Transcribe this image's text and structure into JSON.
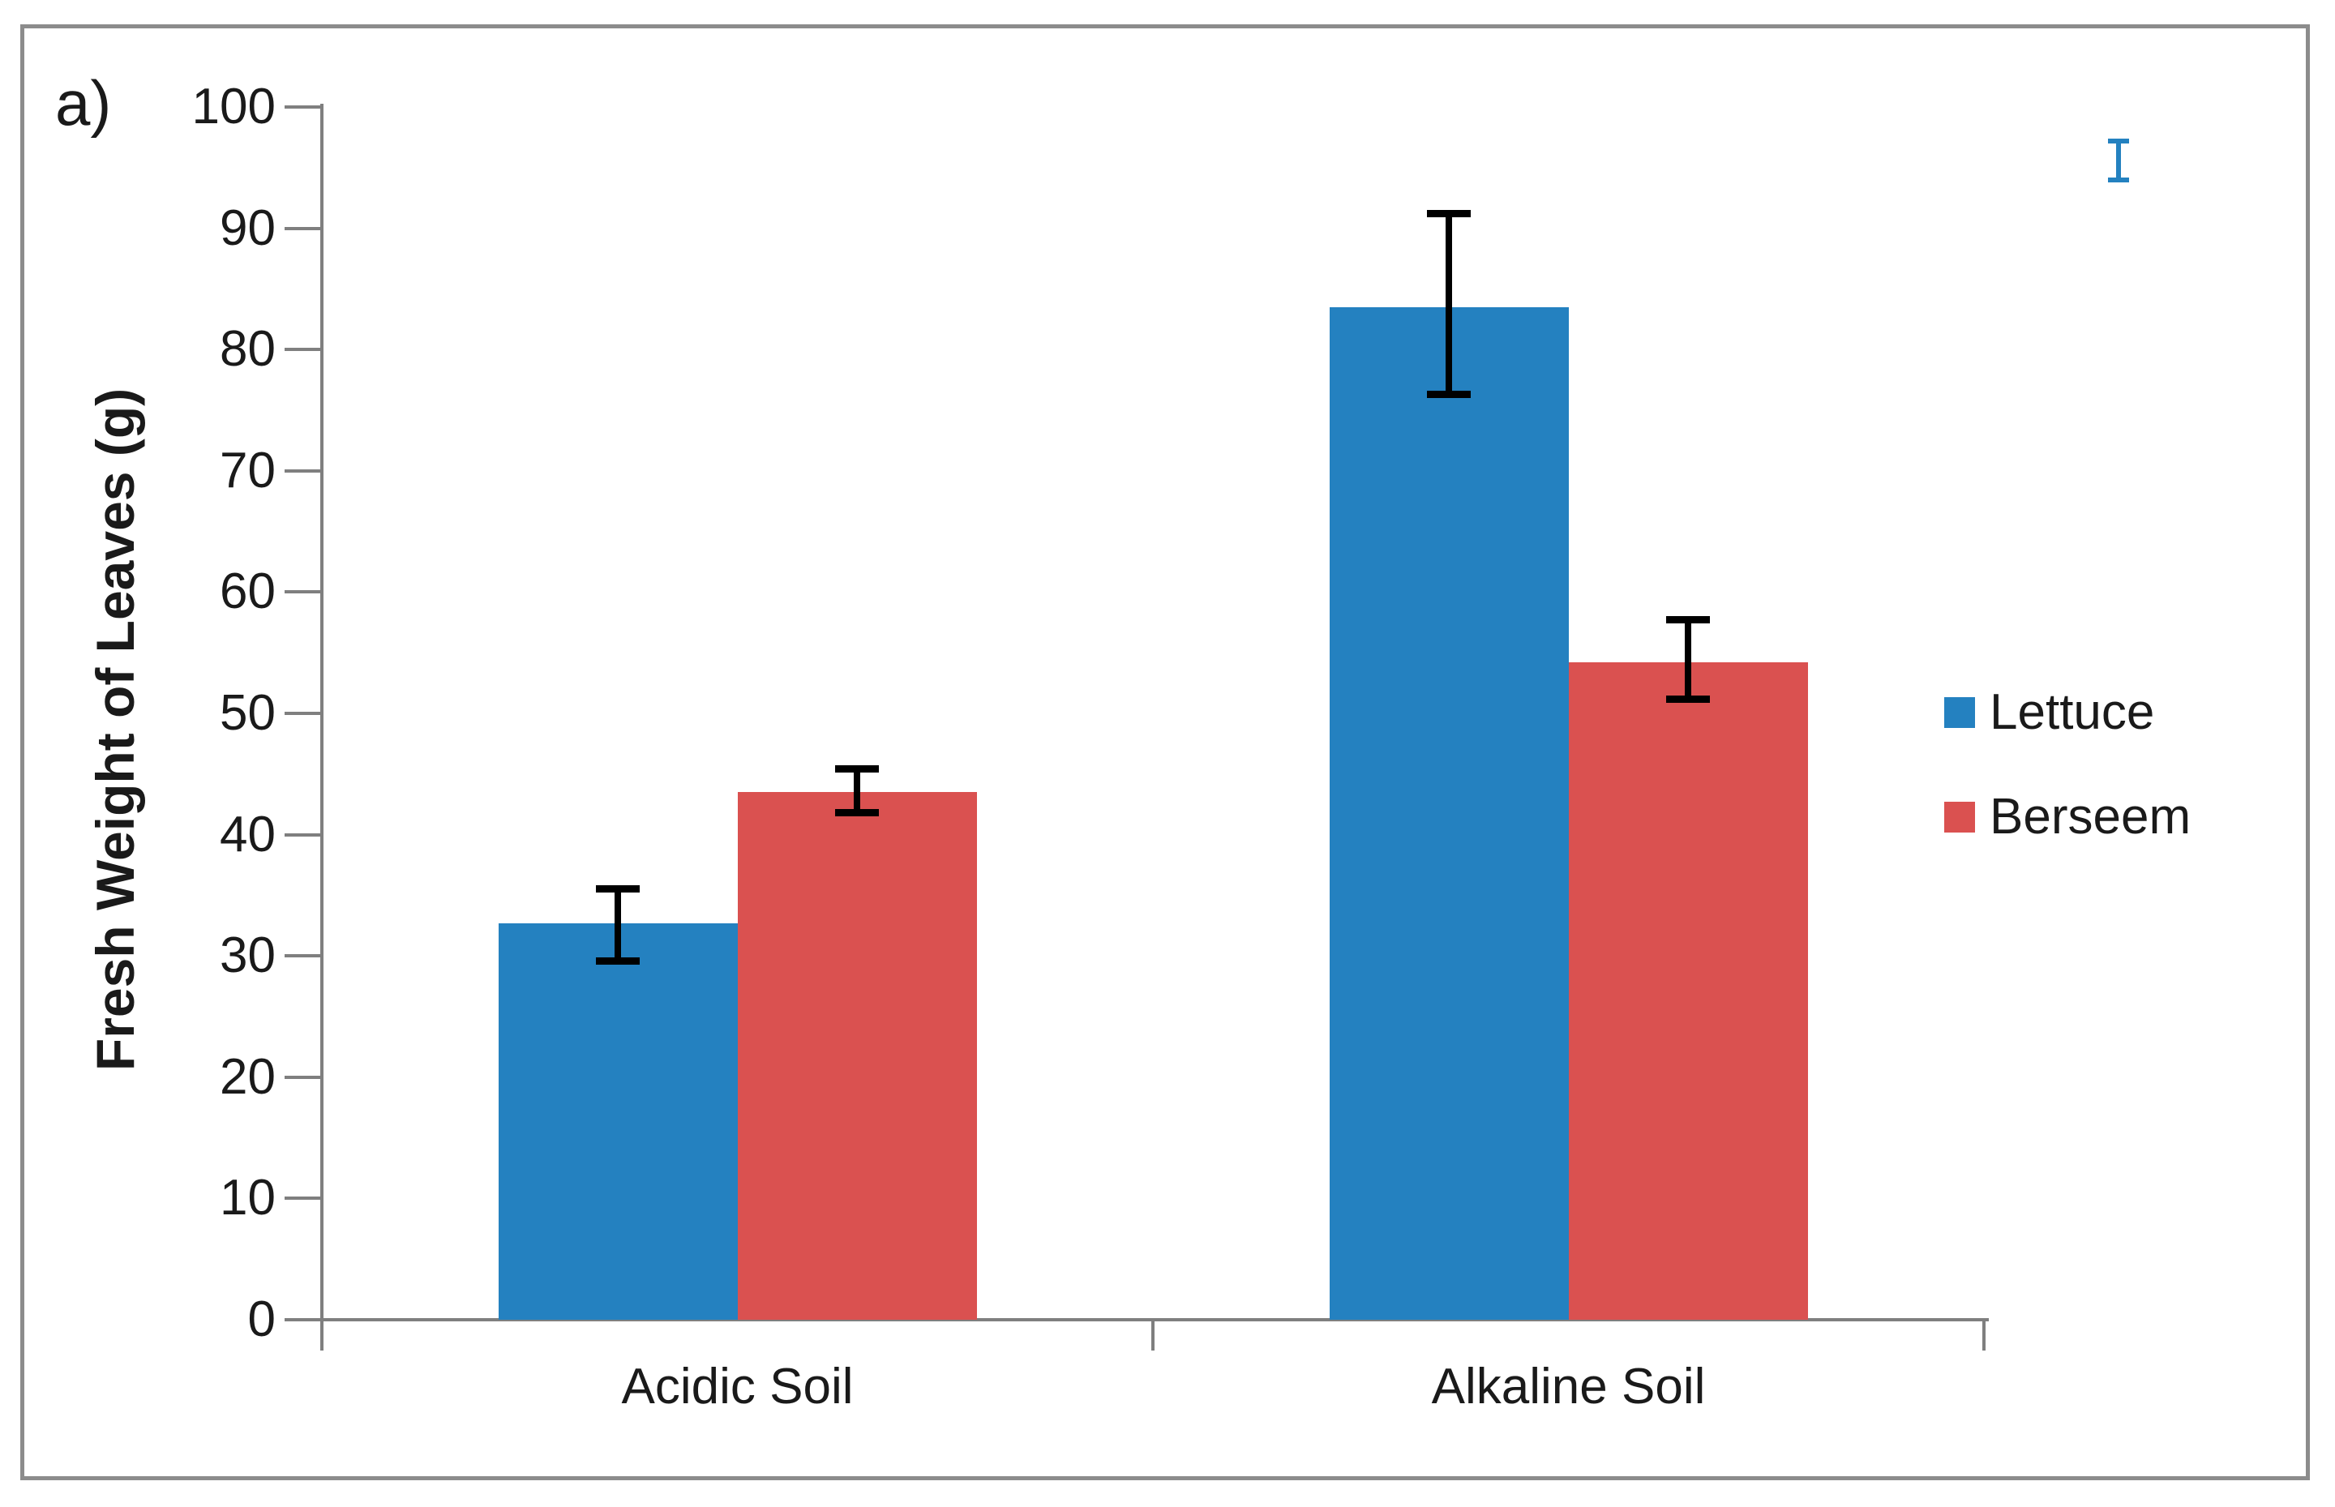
{
  "figure": {
    "panel_label": "a)",
    "frame_color": "#8c8c8c"
  },
  "chart_data": {
    "type": "bar",
    "title": "",
    "categories": [
      "Acidic Soil",
      "Alkaline Soil"
    ],
    "series": [
      {
        "name": "Lettuce",
        "color": "#2481C0",
        "values": [
          32.7,
          83.5
        ],
        "error_plus": [
          2.8,
          7.7
        ],
        "error_minus": [
          3.1,
          7.2
        ]
      },
      {
        "name": "Berseem",
        "color": "#DA5150",
        "values": [
          43.5,
          54.2
        ],
        "error_plus": [
          1.9,
          3.5
        ],
        "error_minus": [
          1.7,
          3.0
        ]
      }
    ],
    "xlabel": "",
    "ylabel": "Fresh Weight of Leaves (g)",
    "ylim": [
      0,
      100
    ],
    "yticks": [
      0,
      10,
      20,
      30,
      40,
      50,
      60,
      70,
      80,
      90,
      100
    ],
    "grid": false,
    "legend_position": "right",
    "error_bar_color": "#000000",
    "axis_color": "#7f7f7f",
    "stray_marker": {
      "shape": "error-bar-glyph",
      "color": "#2481C0"
    }
  }
}
